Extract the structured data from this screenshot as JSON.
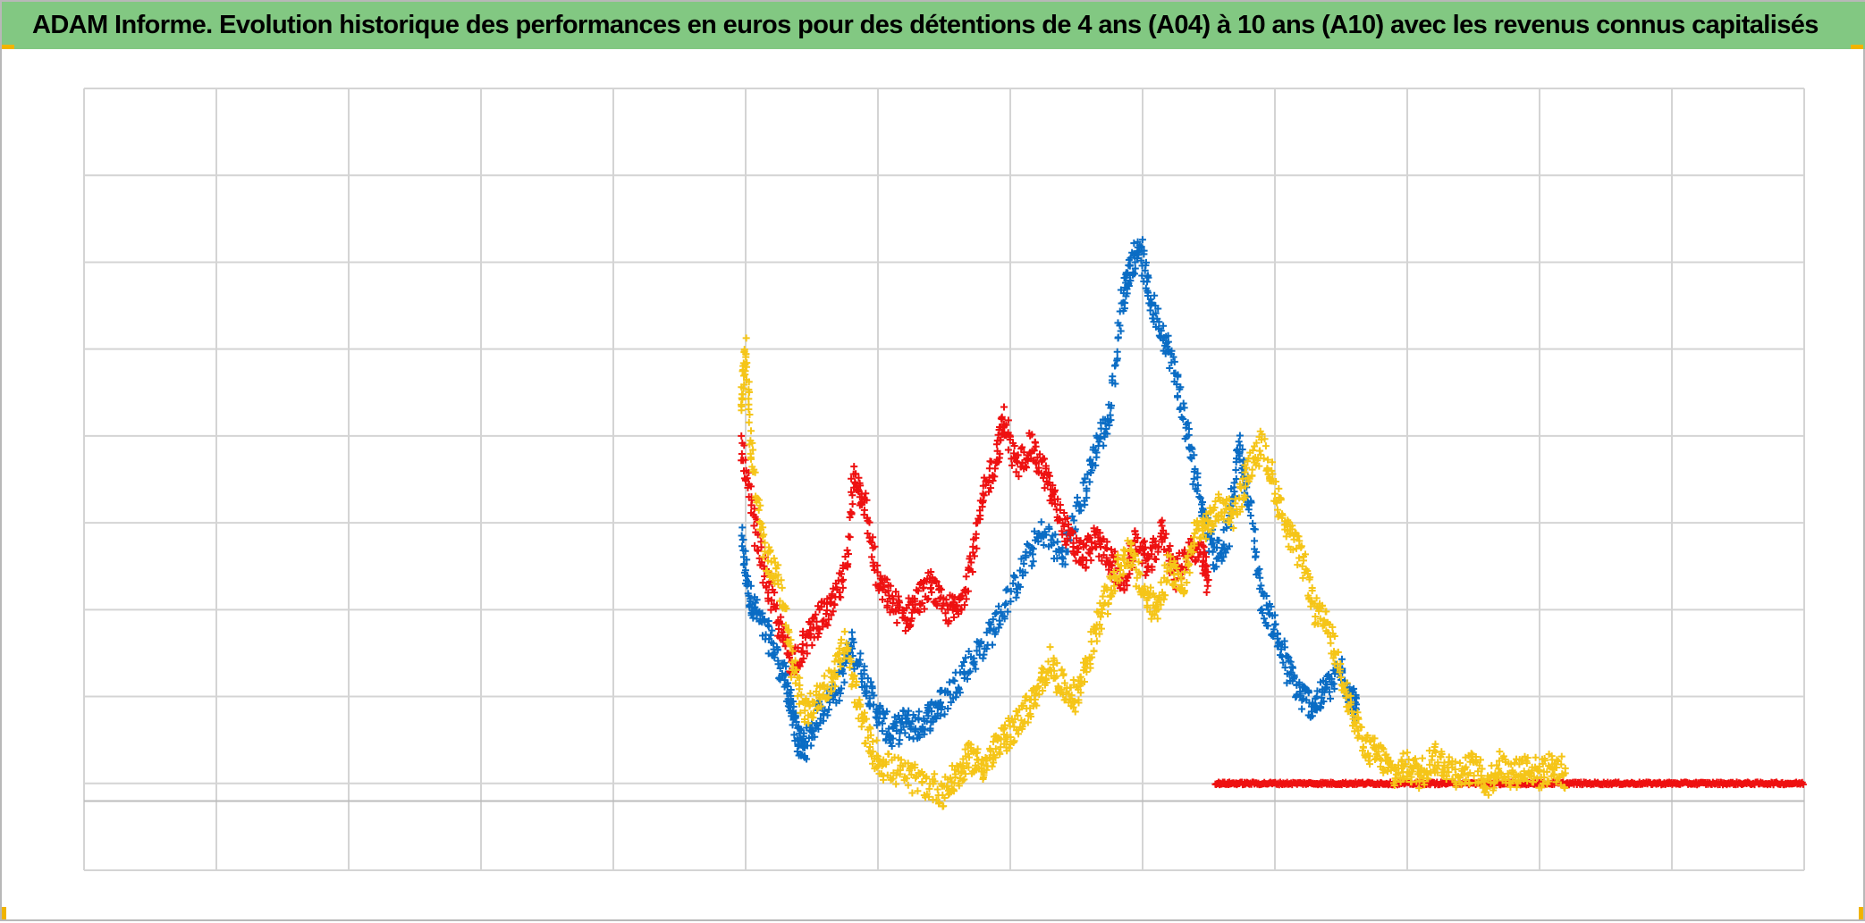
{
  "title": "ADAM Informe. Evolution historique des performances en euros pour des détentions de 4 ans (A04) à 10 ans (A10) avec les revenus connus capitalisés",
  "colors": {
    "title_bar": "#82c882",
    "blue_series": "#0a6cc4",
    "red_series": "#ee1111",
    "yellow_series": "#f5c518",
    "grid": "#d4d4d4",
    "corner_marks": "#f0b400"
  },
  "chart_data": {
    "type": "scatter",
    "title": "ADAM Informe. Evolution historique des performances en euros pour des détentions de 4 ans (A04) à 10 ans (A10) avec les revenus connus capitalisés",
    "xlabel": "",
    "ylabel": "",
    "tick_labels_visible": false,
    "legend": "none",
    "grid": true,
    "marker": "plus",
    "x_gridlines": 13,
    "y_gridlines": 9,
    "xlim": [
      0,
      13
    ],
    "ylim": [
      0,
      9
    ],
    "series": [
      {
        "color": "#0a6cc4",
        "points": [
          [
            4.97,
            3.8
          ],
          [
            5.02,
            3.2
          ],
          [
            5.1,
            2.9
          ],
          [
            5.2,
            2.6
          ],
          [
            5.3,
            2.2
          ],
          [
            5.35,
            1.8
          ],
          [
            5.4,
            1.5
          ],
          [
            5.45,
            1.4
          ],
          [
            5.55,
            1.8
          ],
          [
            5.7,
            2.1
          ],
          [
            5.8,
            2.6
          ],
          [
            5.9,
            2.2
          ],
          [
            6.0,
            1.8
          ],
          [
            6.1,
            1.55
          ],
          [
            6.2,
            1.7
          ],
          [
            6.3,
            1.65
          ],
          [
            6.4,
            1.8
          ],
          [
            6.5,
            1.95
          ],
          [
            6.65,
            2.3
          ],
          [
            6.8,
            2.6
          ],
          [
            6.95,
            3.0
          ],
          [
            7.1,
            3.5
          ],
          [
            7.25,
            3.9
          ],
          [
            7.4,
            3.6
          ],
          [
            7.55,
            4.3
          ],
          [
            7.65,
            4.9
          ],
          [
            7.75,
            5.2
          ],
          [
            7.85,
            6.6
          ],
          [
            7.9,
            6.9
          ],
          [
            7.98,
            7.2
          ],
          [
            8.05,
            6.6
          ],
          [
            8.15,
            6.2
          ],
          [
            8.25,
            5.7
          ],
          [
            8.35,
            4.9
          ],
          [
            8.45,
            4.2
          ],
          [
            8.55,
            3.6
          ],
          [
            8.65,
            3.9
          ],
          [
            8.73,
            4.9
          ],
          [
            8.8,
            4.3
          ],
          [
            8.9,
            3.1
          ],
          [
            9.0,
            2.8
          ],
          [
            9.1,
            2.3
          ],
          [
            9.2,
            2.0
          ],
          [
            9.3,
            1.9
          ],
          [
            9.4,
            2.1
          ],
          [
            9.5,
            2.3
          ],
          [
            9.58,
            2.0
          ],
          [
            9.62,
            1.8
          ]
        ]
      },
      {
        "color": "#ee1111",
        "points": [
          [
            4.97,
            4.9
          ],
          [
            5.05,
            4.1
          ],
          [
            5.15,
            3.4
          ],
          [
            5.25,
            2.8
          ],
          [
            5.35,
            2.4
          ],
          [
            5.45,
            2.6
          ],
          [
            5.55,
            2.9
          ],
          [
            5.65,
            3.0
          ],
          [
            5.75,
            3.4
          ],
          [
            5.82,
            4.6
          ],
          [
            5.9,
            4.2
          ],
          [
            6.0,
            3.3
          ],
          [
            6.1,
            3.1
          ],
          [
            6.2,
            2.9
          ],
          [
            6.3,
            3.1
          ],
          [
            6.4,
            3.3
          ],
          [
            6.5,
            3.0
          ],
          [
            6.6,
            3.0
          ],
          [
            6.7,
            3.5
          ],
          [
            6.8,
            4.3
          ],
          [
            6.9,
            4.8
          ],
          [
            6.95,
            5.2
          ],
          [
            7.05,
            4.6
          ],
          [
            7.15,
            4.9
          ],
          [
            7.25,
            4.6
          ],
          [
            7.35,
            4.2
          ],
          [
            7.45,
            3.8
          ],
          [
            7.55,
            3.6
          ],
          [
            7.65,
            3.8
          ],
          [
            7.75,
            3.6
          ],
          [
            7.85,
            3.3
          ],
          [
            7.95,
            3.8
          ],
          [
            8.05,
            3.5
          ],
          [
            8.15,
            3.9
          ],
          [
            8.25,
            3.4
          ],
          [
            8.35,
            3.7
          ],
          [
            8.45,
            3.6
          ],
          [
            8.5,
            3.3
          ]
        ]
      },
      {
        "color": "#ee1111",
        "style": "flat",
        "points": [
          [
            8.55,
            1.0
          ],
          [
            8.8,
            1.0
          ],
          [
            9.1,
            1.0
          ],
          [
            9.4,
            1.0
          ],
          [
            9.7,
            1.0
          ],
          [
            10.0,
            1.0
          ],
          [
            10.3,
            1.0
          ],
          [
            10.6,
            1.0
          ],
          [
            10.9,
            1.0
          ],
          [
            11.2,
            1.0
          ],
          [
            11.5,
            1.0
          ],
          [
            11.8,
            1.0
          ],
          [
            12.1,
            1.0
          ],
          [
            12.4,
            1.0
          ],
          [
            12.7,
            1.0
          ],
          [
            13.0,
            1.0
          ]
        ]
      },
      {
        "color": "#f5c518",
        "points": [
          [
            4.97,
            5.4
          ],
          [
            5.0,
            6.0
          ],
          [
            5.05,
            4.7
          ],
          [
            5.15,
            3.6
          ],
          [
            5.25,
            3.4
          ],
          [
            5.35,
            2.4
          ],
          [
            5.45,
            1.8
          ],
          [
            5.55,
            2.0
          ],
          [
            5.65,
            2.2
          ],
          [
            5.75,
            2.6
          ],
          [
            5.85,
            1.9
          ],
          [
            5.95,
            1.4
          ],
          [
            6.05,
            1.2
          ],
          [
            6.2,
            1.1
          ],
          [
            6.35,
            1.0
          ],
          [
            6.5,
            0.9
          ],
          [
            6.6,
            1.1
          ],
          [
            6.7,
            1.3
          ],
          [
            6.8,
            1.2
          ],
          [
            6.9,
            1.4
          ],
          [
            7.0,
            1.6
          ],
          [
            7.1,
            1.8
          ],
          [
            7.2,
            2.0
          ],
          [
            7.3,
            2.4
          ],
          [
            7.4,
            2.1
          ],
          [
            7.5,
            2.0
          ],
          [
            7.6,
            2.5
          ],
          [
            7.7,
            3.0
          ],
          [
            7.8,
            3.4
          ],
          [
            7.9,
            3.7
          ],
          [
            8.0,
            3.2
          ],
          [
            8.1,
            3.0
          ],
          [
            8.2,
            3.5
          ],
          [
            8.3,
            3.2
          ],
          [
            8.4,
            3.9
          ],
          [
            8.5,
            4.0
          ],
          [
            8.6,
            4.2
          ],
          [
            8.7,
            4.1
          ],
          [
            8.8,
            4.6
          ],
          [
            8.9,
            4.9
          ],
          [
            9.0,
            4.4
          ],
          [
            9.1,
            3.9
          ],
          [
            9.2,
            3.6
          ],
          [
            9.3,
            3.0
          ],
          [
            9.4,
            2.8
          ],
          [
            9.5,
            2.3
          ],
          [
            9.6,
            1.7
          ],
          [
            9.7,
            1.4
          ],
          [
            9.8,
            1.3
          ],
          [
            9.9,
            1.1
          ],
          [
            10.0,
            1.2
          ],
          [
            10.1,
            1.1
          ],
          [
            10.2,
            1.3
          ],
          [
            10.3,
            1.2
          ],
          [
            10.4,
            1.1
          ],
          [
            10.5,
            1.2
          ],
          [
            10.6,
            1.0
          ],
          [
            10.7,
            1.2
          ],
          [
            10.8,
            1.1
          ],
          [
            10.9,
            1.2
          ],
          [
            11.0,
            1.1
          ],
          [
            11.1,
            1.2
          ],
          [
            11.2,
            1.1
          ]
        ]
      }
    ]
  }
}
